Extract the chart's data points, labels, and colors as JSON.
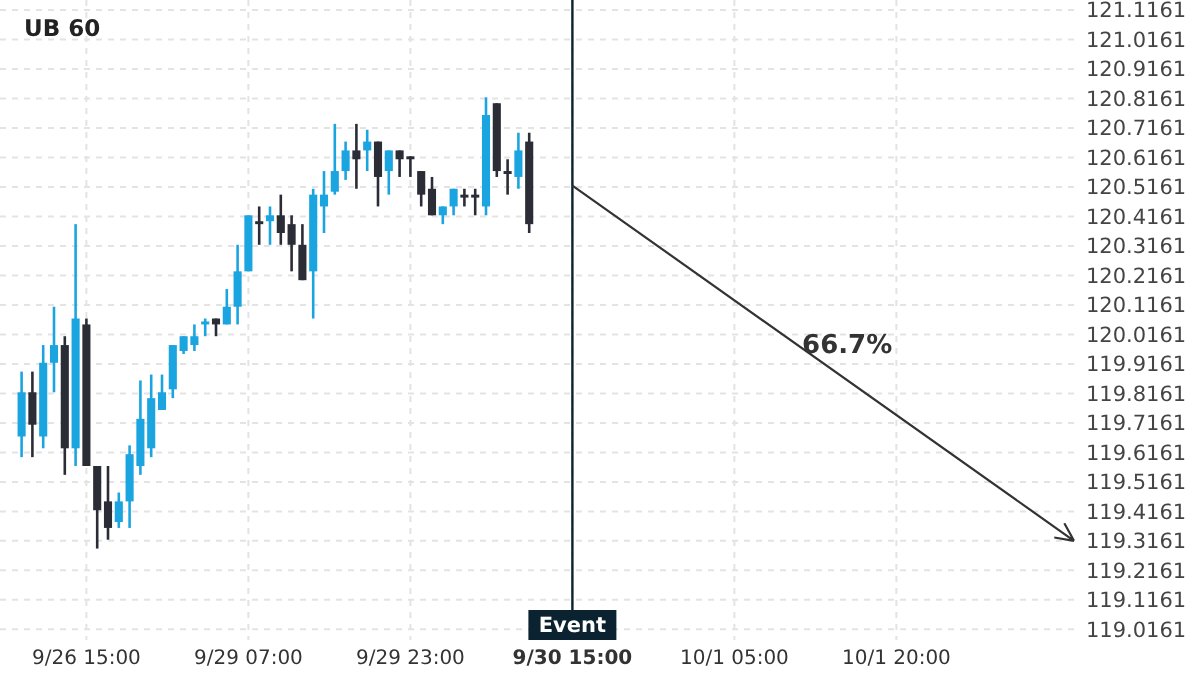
{
  "chart_data": {
    "type": "candlestick",
    "title": "UB 60",
    "categories": [
      null,
      null,
      null,
      null,
      null,
      null,
      "9/26 15:00",
      null,
      null,
      null,
      null,
      null,
      null,
      null,
      null,
      null,
      null,
      null,
      null,
      null,
      null,
      "9/29 07:00",
      null,
      null,
      null,
      null,
      null,
      null,
      null,
      null,
      null,
      null,
      null,
      null,
      null,
      null,
      "9/29 23:00",
      null,
      null,
      null,
      null,
      null,
      null,
      null,
      null,
      null,
      null,
      null,
      null,
      null,
      null,
      "9/30 15:00",
      null,
      null,
      null,
      null,
      null,
      null,
      null,
      null,
      null,
      null,
      null,
      null,
      null,
      null,
      "10/1 05:00",
      null,
      null,
      null,
      null,
      null,
      null,
      null,
      null,
      null,
      null,
      null,
      null,
      null,
      null,
      "10/1 20:00",
      null,
      null,
      null,
      null,
      null,
      null,
      null,
      null,
      null,
      null,
      null,
      null,
      null,
      null,
      null,
      null
    ],
    "ylim": [
      118.98,
      121.15
    ],
    "yticks": [
      {
        "value": 119.0161,
        "label": "119.0161"
      },
      {
        "value": 119.1161,
        "label": "119.1161"
      },
      {
        "value": 119.2161,
        "label": "119.2161"
      },
      {
        "value": 119.3161,
        "label": "119.3161"
      },
      {
        "value": 119.4161,
        "label": "119.4161"
      },
      {
        "value": 119.5161,
        "label": "119.5161"
      },
      {
        "value": 119.6161,
        "label": "119.6161"
      },
      {
        "value": 119.7161,
        "label": "119.7161"
      },
      {
        "value": 119.8161,
        "label": "119.8161"
      },
      {
        "value": 119.9161,
        "label": "119.9161"
      },
      {
        "value": 120.0161,
        "label": "120.0161"
      },
      {
        "value": 120.1161,
        "label": "120.1161"
      },
      {
        "value": 120.2161,
        "label": "120.2161"
      },
      {
        "value": 120.3161,
        "label": "120.3161"
      },
      {
        "value": 120.4161,
        "label": "120.4161"
      },
      {
        "value": 120.5161,
        "label": "120.5161"
      },
      {
        "value": 120.6161,
        "label": "120.6161"
      },
      {
        "value": 120.7161,
        "label": "120.7161"
      },
      {
        "value": 120.8161,
        "label": "120.8161"
      },
      {
        "value": 120.9161,
        "label": "120.9161"
      },
      {
        "value": 121.0161,
        "label": "121.0161"
      },
      {
        "value": 121.1161,
        "label": "121.1161"
      }
    ],
    "grid": true,
    "ohlc": [
      [
        119.67,
        119.89,
        119.6,
        119.82
      ],
      [
        119.82,
        119.89,
        119.6,
        119.71
      ],
      [
        119.67,
        119.98,
        119.63,
        119.92
      ],
      [
        119.92,
        120.11,
        119.82,
        119.98
      ],
      [
        119.98,
        120.01,
        119.54,
        119.63
      ],
      [
        119.63,
        120.39,
        119.57,
        120.07
      ],
      [
        120.05,
        120.07,
        119.57,
        119.57
      ],
      [
        119.57,
        119.57,
        119.29,
        119.42
      ],
      [
        119.45,
        119.57,
        119.32,
        119.36
      ],
      [
        119.38,
        119.48,
        119.36,
        119.45
      ],
      [
        119.45,
        119.64,
        119.36,
        119.61
      ],
      [
        119.57,
        119.86,
        119.54,
        119.73
      ],
      [
        119.63,
        119.88,
        119.6,
        119.8
      ],
      [
        119.76,
        119.88,
        119.76,
        119.82
      ],
      [
        119.83,
        119.98,
        119.8,
        119.98
      ],
      [
        119.96,
        120.01,
        119.95,
        120.01
      ],
      [
        119.98,
        120.05,
        119.96,
        120.01
      ],
      [
        120.05,
        120.07,
        120.01,
        120.06
      ],
      [
        120.07,
        120.07,
        120.01,
        120.05
      ],
      [
        120.05,
        120.17,
        120.05,
        120.11
      ],
      [
        120.11,
        120.32,
        120.05,
        120.23
      ],
      [
        120.23,
        120.42,
        120.23,
        120.42
      ],
      [
        120.4,
        120.45,
        120.32,
        120.39
      ],
      [
        120.4,
        120.45,
        120.32,
        120.42
      ],
      [
        120.42,
        120.49,
        120.32,
        120.36
      ],
      [
        120.39,
        120.42,
        120.23,
        120.32
      ],
      [
        120.32,
        120.39,
        120.2,
        120.2
      ],
      [
        120.23,
        120.51,
        120.07,
        120.49
      ],
      [
        120.45,
        120.57,
        120.36,
        120.49
      ],
      [
        120.5,
        120.73,
        120.49,
        120.57
      ],
      [
        120.57,
        120.67,
        120.54,
        120.64
      ],
      [
        120.64,
        120.73,
        120.51,
        120.61
      ],
      [
        120.64,
        120.71,
        120.57,
        120.67
      ],
      [
        120.67,
        120.67,
        120.45,
        120.55
      ],
      [
        120.57,
        120.64,
        120.49,
        120.64
      ],
      [
        120.64,
        120.64,
        120.55,
        120.61
      ],
      [
        120.62,
        120.62,
        120.55,
        120.61
      ],
      [
        120.57,
        120.57,
        120.45,
        120.49
      ],
      [
        120.51,
        120.55,
        120.42,
        120.42
      ],
      [
        120.42,
        120.45,
        120.39,
        120.45
      ],
      [
        120.45,
        120.51,
        120.42,
        120.51
      ],
      [
        120.49,
        120.51,
        120.45,
        120.48
      ],
      [
        120.49,
        120.51,
        120.42,
        120.48
      ],
      [
        120.45,
        120.82,
        120.42,
        120.76
      ],
      [
        120.8,
        120.8,
        120.55,
        120.57
      ],
      [
        120.57,
        120.61,
        120.49,
        120.56
      ],
      [
        120.55,
        120.7,
        120.51,
        120.64
      ],
      [
        120.67,
        120.7,
        120.36,
        120.39
      ],
      null,
      null,
      null,
      null,
      null,
      null,
      null,
      null,
      null,
      null,
      null,
      null,
      null,
      null,
      null,
      null,
      null,
      null,
      null,
      null,
      null,
      null,
      null,
      null,
      null,
      null,
      null,
      null,
      null,
      null,
      null,
      null,
      null,
      null,
      null,
      null,
      null,
      null,
      null,
      null,
      null,
      null,
      null,
      null,
      null,
      null,
      null,
      null,
      null,
      null
    ],
    "colors": [
      "#1ba5e0",
      "#2b2d36",
      "#1ba5e0",
      "#1ba5e0",
      "#2b2d36",
      "#1ba5e0",
      "#2b2d36",
      "#2b2d36",
      "#2b2d36",
      "#1ba5e0",
      "#1ba5e0",
      "#1ba5e0",
      "#1ba5e0",
      "#1ba5e0",
      "#1ba5e0",
      "#1ba5e0",
      "#1ba5e0",
      "#1ba5e0",
      "#2b2d36",
      "#1ba5e0",
      "#1ba5e0",
      "#1ba5e0",
      "#2b2d36",
      "#1ba5e0",
      "#2b2d36",
      "#2b2d36",
      "#2b2d36",
      "#1ba5e0",
      "#1ba5e0",
      "#1ba5e0",
      "#1ba5e0",
      "#2b2d36",
      "#1ba5e0",
      "#2b2d36",
      "#1ba5e0",
      "#2b2d36",
      "#2b2d36",
      "#2b2d36",
      "#2b2d36",
      "#1ba5e0",
      "#1ba5e0",
      "#2b2d36",
      "#2b2d36",
      "#1ba5e0",
      "#2b2d36",
      "#2b2d36",
      "#1ba5e0",
      "#2b2d36",
      null,
      null,
      null,
      null,
      null,
      null,
      null,
      null,
      null,
      null,
      null,
      null,
      null,
      null,
      null,
      null,
      null,
      null,
      null,
      null,
      null,
      null,
      null,
      null,
      null,
      null,
      null,
      null,
      null,
      null,
      null,
      null,
      null,
      null,
      null,
      null,
      null,
      null,
      null,
      null,
      null,
      null,
      null,
      null,
      null,
      null,
      null,
      null,
      null,
      null
    ],
    "ref_lines": [
      {
        "axis": "x",
        "value": "9/30 15:00",
        "label": "Event",
        "color": "#0b2330"
      }
    ],
    "annotations": [
      "66.7%"
    ]
  }
}
